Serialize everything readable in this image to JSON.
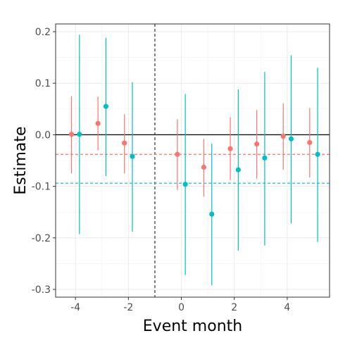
{
  "chart_data": {
    "type": "scatter",
    "title": "",
    "xlabel": "Event month",
    "ylabel": "Estimate",
    "xlim": [
      -4.75,
      5.6
    ],
    "ylim": [
      -0.315,
      0.215
    ],
    "x_ticks": [
      -4,
      -2,
      0,
      2,
      4
    ],
    "x_tick_labels": [
      "-4",
      "-2",
      "0",
      "2",
      "4"
    ],
    "y_ticks": [
      -0.3,
      -0.2,
      -0.1,
      0.0,
      0.1,
      0.2
    ],
    "y_tick_labels": [
      "-0.3",
      "-0.2",
      "-0.1",
      "0.0",
      "0.1",
      "0.2"
    ],
    "grid": true,
    "legend": "none",
    "reference_lines": [
      {
        "orientation": "horizontal",
        "value": 0.0,
        "style": "solid",
        "color": "#000000"
      },
      {
        "orientation": "vertical",
        "value": -1,
        "style": "dashed",
        "color": "#333333"
      },
      {
        "orientation": "horizontal",
        "value": -0.038,
        "style": "dashed",
        "color": "#F8766D"
      },
      {
        "orientation": "horizontal",
        "value": -0.094,
        "style": "dashed",
        "color": "#00BFC4"
      }
    ],
    "series": [
      {
        "color": "#F8766D",
        "points": [
          {
            "x": -4.15,
            "y": 0.001,
            "lo": -0.075,
            "hi": 0.075
          },
          {
            "x": -3.15,
            "y": 0.022,
            "lo": -0.03,
            "hi": 0.074
          },
          {
            "x": -2.15,
            "y": -0.016,
            "lo": -0.075,
            "hi": 0.04
          },
          {
            "x": -0.15,
            "y": -0.038,
            "lo": -0.107,
            "hi": 0.03
          },
          {
            "x": 0.85,
            "y": -0.063,
            "lo": -0.12,
            "hi": -0.008
          },
          {
            "x": 1.85,
            "y": -0.027,
            "lo": -0.088,
            "hi": 0.034
          },
          {
            "x": 2.85,
            "y": -0.018,
            "lo": -0.085,
            "hi": 0.048
          },
          {
            "x": 3.85,
            "y": -0.003,
            "lo": -0.068,
            "hi": 0.061
          },
          {
            "x": 4.85,
            "y": -0.015,
            "lo": -0.083,
            "hi": 0.052
          }
        ]
      },
      {
        "color": "#00BFC4",
        "points": [
          {
            "x": -3.85,
            "y": 0.001,
            "lo": -0.193,
            "hi": 0.194
          },
          {
            "x": -2.85,
            "y": 0.055,
            "lo": -0.08,
            "hi": 0.188
          },
          {
            "x": -1.85,
            "y": -0.042,
            "lo": -0.188,
            "hi": 0.102
          },
          {
            "x": 0.15,
            "y": -0.096,
            "lo": -0.272,
            "hi": 0.079
          },
          {
            "x": 1.15,
            "y": -0.154,
            "lo": -0.292,
            "hi": -0.017
          },
          {
            "x": 2.15,
            "y": -0.068,
            "lo": -0.225,
            "hi": 0.088
          },
          {
            "x": 3.15,
            "y": -0.045,
            "lo": -0.215,
            "hi": 0.122
          },
          {
            "x": 4.15,
            "y": -0.008,
            "lo": -0.172,
            "hi": 0.154
          },
          {
            "x": 5.15,
            "y": -0.038,
            "lo": -0.208,
            "hi": 0.13
          }
        ]
      }
    ]
  }
}
